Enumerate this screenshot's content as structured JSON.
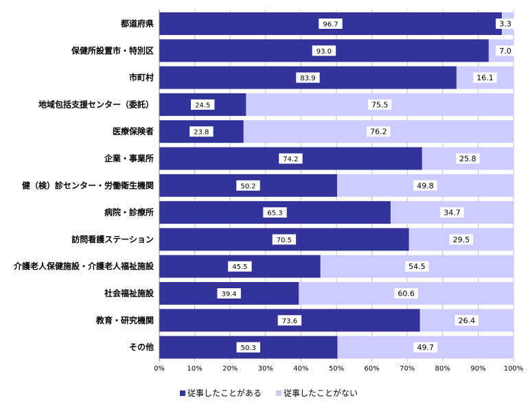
{
  "chart_data": {
    "type": "bar",
    "orientation": "horizontal",
    "stacked": "percent",
    "categories": [
      "都道府県",
      "保健所設置市・特別区",
      "市町村",
      "地域包括支援センター（委託）",
      "医療保険者",
      "企業・事業所",
      "健（検）診センター・労働衛生機関",
      "病院・診療所",
      "訪問看護ステーション",
      "介護老人保健施設・介護老人福祉施設",
      "社会福祉施設",
      "教育・研究機関",
      "その他"
    ],
    "series": [
      {
        "name": "従事したことがある",
        "color": "#333399",
        "values": [
          96.7,
          93.0,
          83.9,
          24.5,
          23.8,
          74.2,
          50.2,
          65.3,
          70.5,
          45.5,
          39.4,
          73.6,
          50.3
        ],
        "labels": [
          "96.7",
          "93.0",
          "83.9",
          "24.5",
          "23.8",
          "74.2",
          "50.2",
          "65.3",
          "70.5",
          "45.5",
          "39.4",
          "73.6",
          "50.3"
        ]
      },
      {
        "name": "従事したことがない",
        "color": "#ccccff",
        "values": [
          3.3,
          7.0,
          16.1,
          75.5,
          76.2,
          25.8,
          49.8,
          34.7,
          29.5,
          54.5,
          60.6,
          26.4,
          49.7
        ],
        "labels": [
          "3.3",
          "7.0",
          "16.1",
          "75.5",
          "76.2",
          "25.8",
          "49.8",
          "34.7",
          "29.5",
          "54.5",
          "60.6",
          "26.4",
          "49.7"
        ]
      }
    ],
    "xlim": [
      0,
      100
    ],
    "xticks": [
      "0%",
      "10%",
      "20%",
      "30%",
      "40%",
      "50%",
      "60%",
      "70%",
      "80%",
      "90%",
      "100%"
    ],
    "grid": true,
    "legend_position": "bottom"
  }
}
